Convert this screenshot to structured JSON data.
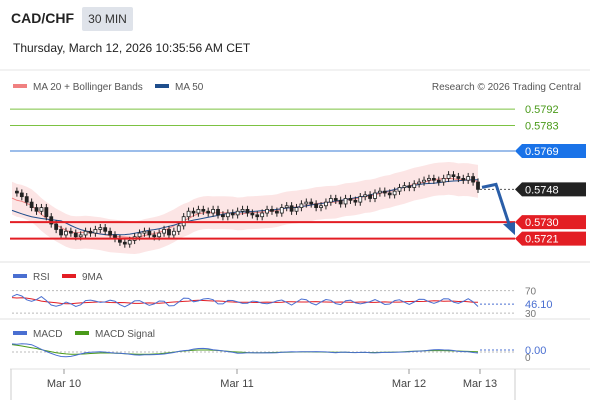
{
  "header": {
    "symbol": "CAD/CHF",
    "timeframe": "30 MIN",
    "datetime": "Thursday, March 12, 2026 10:35:56 AM CET"
  },
  "chart_data": [
    {
      "type": "candlestick",
      "panel": "price",
      "legend": [
        {
          "name": "MA 20 + Bollinger Bands",
          "color": "#f08080"
        },
        {
          "name": "MA 50",
          "color": "#1f4e8c"
        }
      ],
      "attribution": "Research © 2026 Trading Central",
      "x_ticks": [
        "Mar 10",
        "Mar 11",
        "Mar 12",
        "Mar 13"
      ],
      "ylim": [
        0.5712,
        0.5797
      ],
      "levels": [
        {
          "value": 0.5792,
          "label": "0.5792",
          "color": "#7cc242",
          "kind": "resistance"
        },
        {
          "value": 0.5783,
          "label": "0.5783",
          "color": "#7cc242",
          "kind": "resistance"
        },
        {
          "value": 0.5769,
          "label": "0.5769",
          "color": "#3a7bd5",
          "kind": "pivot"
        },
        {
          "value": 0.573,
          "label": "0.5730",
          "color": "#e31e24",
          "kind": "support"
        },
        {
          "value": 0.5721,
          "label": "0.5721",
          "color": "#e31e24",
          "kind": "support"
        }
      ],
      "last_price": {
        "value": 0.5748,
        "label": "0.5748"
      },
      "close_path": [
        0.5747,
        0.5746,
        0.5744,
        0.5741,
        0.5738,
        0.5736,
        0.5738,
        0.5733,
        0.5729,
        0.5726,
        0.5723,
        0.5725,
        0.5724,
        0.5722,
        0.5723,
        0.5725,
        0.5724,
        0.5726,
        0.5727,
        0.5725,
        0.5723,
        0.5721,
        0.5719,
        0.5718,
        0.572,
        0.5722,
        0.5724,
        0.5725,
        0.5723,
        0.5722,
        0.5724,
        0.5726,
        0.5723,
        0.5725,
        0.5728,
        0.5733,
        0.5736,
        0.5735,
        0.5737,
        0.5736,
        0.5735,
        0.5737,
        0.5734,
        0.5733,
        0.5735,
        0.5734,
        0.5736,
        0.5737,
        0.5735,
        0.5734,
        0.5733,
        0.5735,
        0.5737,
        0.5736,
        0.5735,
        0.5738,
        0.5739,
        0.5736,
        0.5738,
        0.574,
        0.5741,
        0.574,
        0.5738,
        0.5739,
        0.5741,
        0.5743,
        0.5742,
        0.574,
        0.5743,
        0.5742,
        0.5741,
        0.5744,
        0.5745,
        0.5743,
        0.5746,
        0.5747,
        0.5746,
        0.5745,
        0.5747,
        0.5749,
        0.575,
        0.5749,
        0.5751,
        0.5752,
        0.5753,
        0.5754,
        0.5753,
        0.5752,
        0.5754,
        0.5756,
        0.5755,
        0.5754,
        0.5753,
        0.5755,
        0.5752,
        0.5748
      ],
      "forecast_arrow": {
        "from": 0.5748,
        "to": 0.5724
      }
    },
    {
      "type": "line",
      "panel": "rsi",
      "legend": [
        {
          "name": "RSI",
          "color": "#4a6fd1"
        },
        {
          "name": "9MA",
          "color": "#e31e24"
        }
      ],
      "ylim": [
        25,
        80
      ],
      "levels": [
        {
          "value": 70,
          "label": "70"
        },
        {
          "value": 30,
          "label": "30"
        }
      ],
      "last_value": {
        "value": 46.1,
        "label": "46.10"
      }
    },
    {
      "type": "line",
      "panel": "macd",
      "legend": [
        {
          "name": "MACD",
          "color": "#4a6fd1"
        },
        {
          "name": "MACD Signal",
          "color": "#4a9a1a"
        }
      ],
      "levels": [
        {
          "value": 0,
          "label": "0"
        }
      ],
      "last_value": {
        "value": 0.0,
        "label": "0.00"
      }
    }
  ]
}
